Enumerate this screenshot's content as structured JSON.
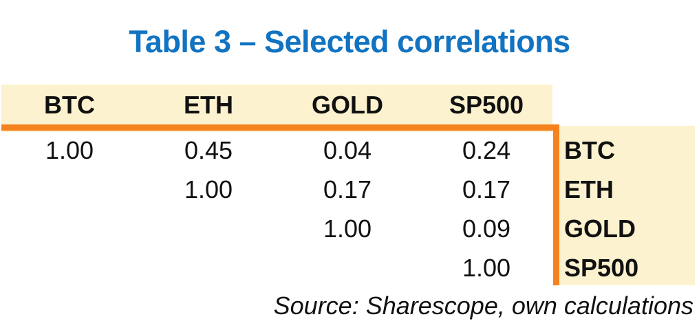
{
  "title": "Table 3 – Selected correlations",
  "source_note": "Source: Sharescope, own calculations",
  "colors": {
    "title_blue": "#1173c1",
    "rule_orange": "#f5821f",
    "band_cream": "#fcf2cf",
    "text_black": "#111111"
  },
  "chart_data": {
    "type": "table",
    "title": "Table 3 – Selected correlations",
    "columns": [
      "BTC",
      "ETH",
      "GOLD",
      "SP500"
    ],
    "row_labels": [
      "BTC",
      "ETH",
      "GOLD",
      "SP500"
    ],
    "matrix": [
      [
        "1.00",
        "0.45",
        "0.04",
        "0.24"
      ],
      [
        "",
        "1.00",
        "0.17",
        "0.17"
      ],
      [
        "",
        "",
        "1.00",
        "0.09"
      ],
      [
        "",
        "",
        "",
        "1.00"
      ]
    ],
    "layout_hints": {
      "shape": "upper-triangular correlation matrix",
      "column_headers_position": "top, cream band",
      "row_labels_position": "right, cream band"
    }
  }
}
